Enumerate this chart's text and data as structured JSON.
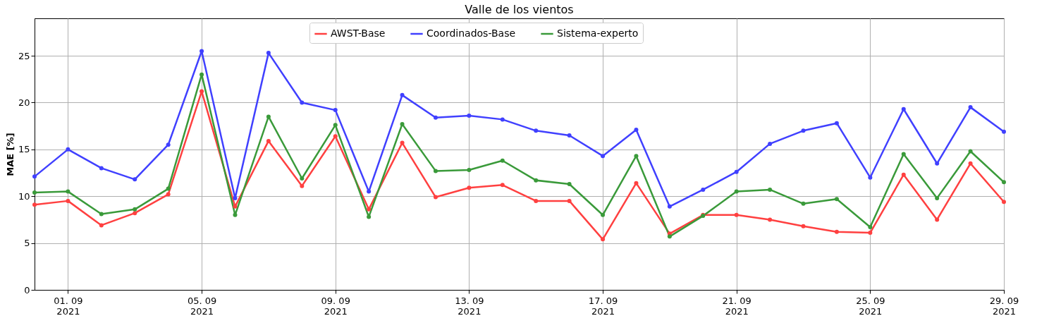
{
  "chart_data": {
    "type": "line",
    "title": "Valle de los vientos",
    "ylabel": "MAE [%]",
    "x": [
      "2021-08-31",
      "2021-09-01",
      "2021-09-02",
      "2021-09-03",
      "2021-09-04",
      "2021-09-05",
      "2021-09-06",
      "2021-09-07",
      "2021-09-08",
      "2021-09-09",
      "2021-09-10",
      "2021-09-11",
      "2021-09-12",
      "2021-09-13",
      "2021-09-14",
      "2021-09-15",
      "2021-09-16",
      "2021-09-17",
      "2021-09-18",
      "2021-09-19",
      "2021-09-20",
      "2021-09-21",
      "2021-09-22",
      "2021-09-23",
      "2021-09-24",
      "2021-09-25",
      "2021-09-26",
      "2021-09-27",
      "2021-09-28",
      "2021-09-29"
    ],
    "series": [
      {
        "name": "AWST-Base",
        "color": "#ff4040",
        "values": [
          9.1,
          9.5,
          6.9,
          8.2,
          10.2,
          21.2,
          8.9,
          15.9,
          11.1,
          16.4,
          8.6,
          15.7,
          9.9,
          10.9,
          11.2,
          9.5,
          9.5,
          5.4,
          11.4,
          6.0,
          8.0,
          8.0,
          7.5,
          6.8,
          6.2,
          6.1,
          12.3,
          7.5,
          13.5,
          9.4
        ]
      },
      {
        "name": "Coordinados-Base",
        "color": "#4040ff",
        "values": [
          12.1,
          15.0,
          13.0,
          11.8,
          15.5,
          25.5,
          9.8,
          25.3,
          20.0,
          19.2,
          10.5,
          20.8,
          18.4,
          18.6,
          18.2,
          17.0,
          16.5,
          14.3,
          17.1,
          8.9,
          10.7,
          12.6,
          15.6,
          17.0,
          17.8,
          12.0,
          19.3,
          13.5,
          19.5,
          16.9
        ]
      },
      {
        "name": "Sistema-experto",
        "color": "#3a9a3a",
        "values": [
          10.4,
          10.5,
          8.1,
          8.6,
          10.8,
          23.0,
          8.0,
          18.5,
          11.9,
          17.6,
          7.8,
          17.7,
          12.7,
          12.8,
          13.8,
          11.7,
          11.3,
          8.0,
          14.3,
          5.7,
          7.9,
          10.5,
          10.7,
          9.2,
          9.7,
          6.7,
          14.5,
          9.8,
          14.8,
          11.5
        ]
      }
    ],
    "xlim": [
      "2021-08-31",
      "2021-09-29"
    ],
    "xticks": [
      {
        "value": "2021-09-01",
        "label": "01. 09\n2021"
      },
      {
        "value": "2021-09-05",
        "label": "05. 09\n2021"
      },
      {
        "value": "2021-09-09",
        "label": "09. 09\n2021"
      },
      {
        "value": "2021-09-13",
        "label": "13. 09\n2021"
      },
      {
        "value": "2021-09-17",
        "label": "17. 09\n2021"
      },
      {
        "value": "2021-09-21",
        "label": "21. 09\n2021"
      },
      {
        "value": "2021-09-25",
        "label": "25. 09\n2021"
      },
      {
        "value": "2021-09-29",
        "label": "29. 09\n2021"
      }
    ],
    "ylim": [
      0,
      29
    ],
    "yticks": [
      0,
      5,
      10,
      15,
      20,
      25
    ],
    "grid": true,
    "legend": "top",
    "marker": "circle",
    "line_style": "solid"
  }
}
